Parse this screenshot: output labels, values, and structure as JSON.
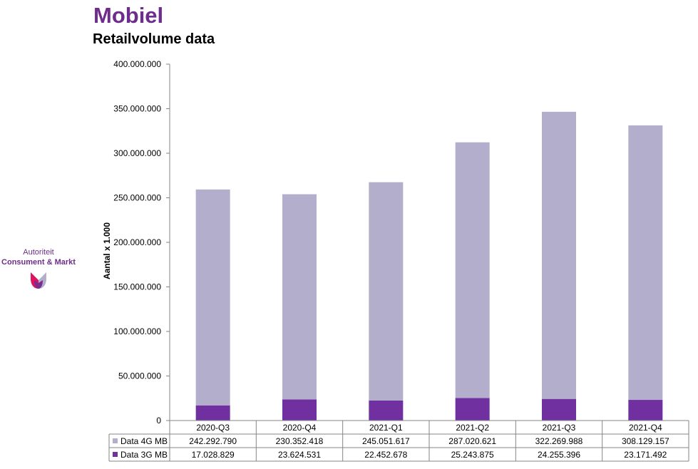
{
  "header": {
    "title": "Mobiel",
    "subtitle": "Retailvolume data"
  },
  "logo": {
    "line1": "Autoriteit",
    "line2": "Consument & Markt",
    "colors": {
      "text": "#6e2c8c",
      "left": "#e0115f",
      "middle": "#7b2d8e",
      "right": "#b3aecb"
    }
  },
  "chart_data": {
    "type": "bar",
    "stacked": true,
    "title": "Retailvolume data",
    "xlabel": "",
    "ylabel": "Aantal x 1.000",
    "ylim": [
      0,
      400000000
    ],
    "yticks": [
      0,
      50000000,
      100000000,
      150000000,
      200000000,
      250000000,
      300000000,
      350000000,
      400000000
    ],
    "ytick_labels": [
      "0",
      "50.000.000",
      "100.000.000",
      "150.000.000",
      "200.000.000",
      "250.000.000",
      "300.000.000",
      "350.000.000",
      "400.000.000"
    ],
    "grid": false,
    "categories": [
      "2020-Q3",
      "2020-Q4",
      "2021-Q1",
      "2021-Q2",
      "2021-Q3",
      "2021-Q4"
    ],
    "series": [
      {
        "name": "Data 3G MB",
        "color": "#7030a0",
        "values": [
          17028829,
          23624531,
          22452678,
          25243875,
          24255396,
          23171492
        ],
        "labels": [
          "17.028.829",
          "23.624.531",
          "22.452.678",
          "25.243.875",
          "24.255.396",
          "23.171.492"
        ]
      },
      {
        "name": "Data 4G MB",
        "color": "#b3aecb",
        "values": [
          242292790,
          230352418,
          245051617,
          287020621,
          322269988,
          308129157
        ],
        "labels": [
          "242.292.790",
          "230.352.418",
          "245.051.617",
          "287.020.621",
          "322.269.988",
          "308.129.157"
        ]
      }
    ],
    "table_rows": [
      {
        "name": "Data 4G MB",
        "color": "#b3aecb",
        "labels": [
          "242.292.790",
          "230.352.418",
          "245.051.617",
          "287.020.621",
          "322.269.988",
          "308.129.157"
        ]
      },
      {
        "name": "Data 3G MB",
        "color": "#7030a0",
        "labels": [
          "17.028.829",
          "23.624.531",
          "22.452.678",
          "25.243.875",
          "24.255.396",
          "23.171.492"
        ]
      }
    ]
  }
}
